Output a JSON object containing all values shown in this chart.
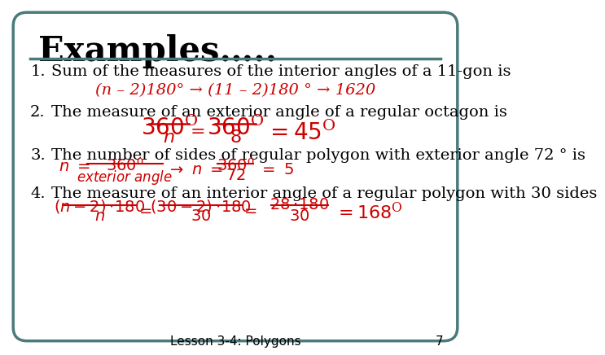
{
  "title": "Examples…..",
  "background_color": "#ffffff",
  "border_color": "#4a7a7a",
  "title_color": "#000000",
  "body_color": "#000000",
  "formula_color": "#cc0000",
  "footer_text": "Lesson 3-4: Polygons",
  "footer_page": "7",
  "item1_text": "Sum of the measures of the interior angles of a 11-gon is",
  "item1_formula": "(n – 2)180° → (11 – 2)180 ° → 1620",
  "item2_text": "The measure of an exterior angle of a regular octagon is",
  "item3_text": "The number of sides of regular polygon with exterior angle 72 ° is",
  "item4_text": "The measure of an interior angle of a regular polygon with 30 sides"
}
